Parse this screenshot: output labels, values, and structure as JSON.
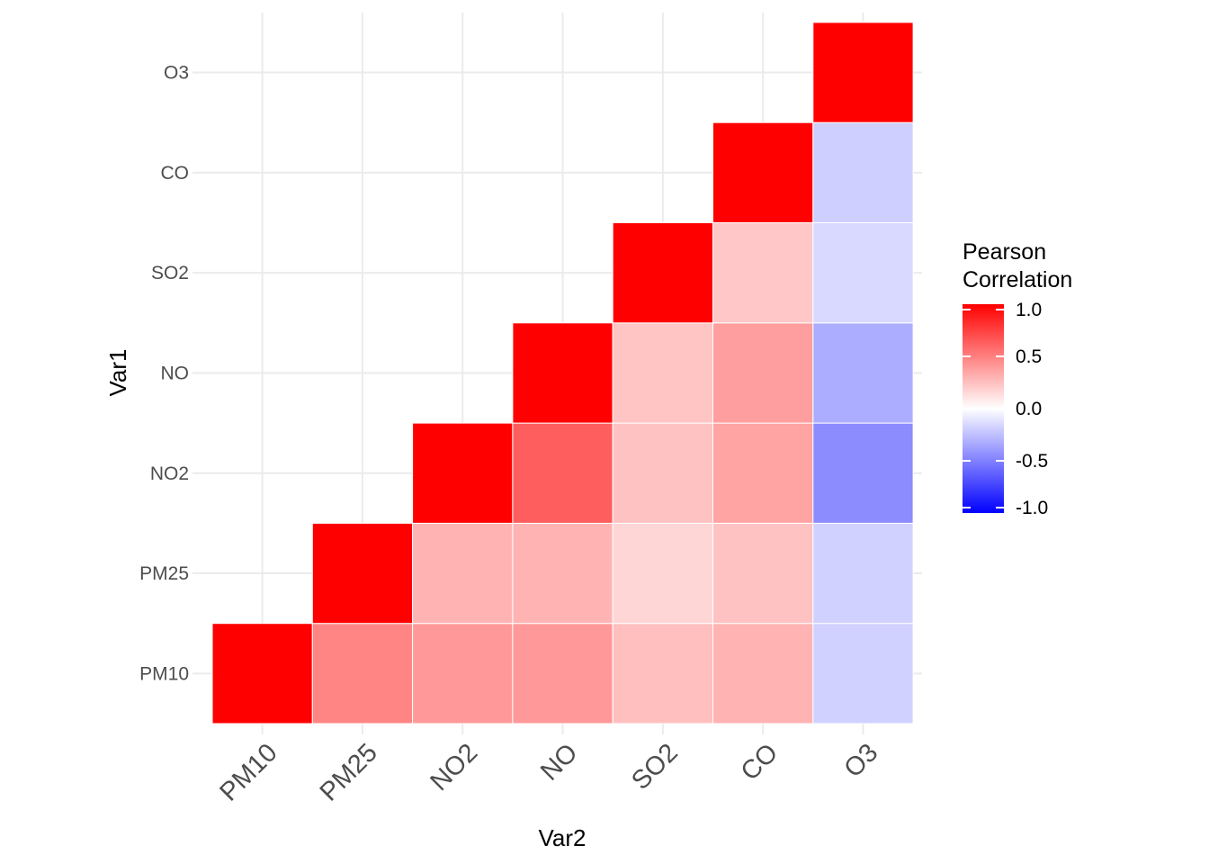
{
  "chart_data": {
    "type": "heatmap",
    "title": "",
    "xlabel": "Var2",
    "ylabel": "Var1",
    "x_categories": [
      "PM10",
      "PM25",
      "NO2",
      "NO",
      "SO2",
      "CO",
      "O3"
    ],
    "y_categories": [
      "PM10",
      "PM25",
      "NO2",
      "NO",
      "SO2",
      "CO",
      "O3"
    ],
    "cells": [
      {
        "x": "PM10",
        "y": "PM10",
        "value": 1.0
      },
      {
        "x": "PM25",
        "y": "PM10",
        "value": 0.48
      },
      {
        "x": "NO2",
        "y": "PM10",
        "value": 0.4
      },
      {
        "x": "NO",
        "y": "PM10",
        "value": 0.4
      },
      {
        "x": "SO2",
        "y": "PM10",
        "value": 0.25
      },
      {
        "x": "CO",
        "y": "PM10",
        "value": 0.3
      },
      {
        "x": "O3",
        "y": "PM10",
        "value": -0.18
      },
      {
        "x": "PM25",
        "y": "PM25",
        "value": 1.0
      },
      {
        "x": "NO2",
        "y": "PM25",
        "value": 0.3
      },
      {
        "x": "NO",
        "y": "PM25",
        "value": 0.3
      },
      {
        "x": "SO2",
        "y": "PM25",
        "value": 0.16
      },
      {
        "x": "CO",
        "y": "PM25",
        "value": 0.24
      },
      {
        "x": "O3",
        "y": "PM25",
        "value": -0.18
      },
      {
        "x": "NO2",
        "y": "NO2",
        "value": 1.0
      },
      {
        "x": "NO",
        "y": "NO2",
        "value": 0.63
      },
      {
        "x": "SO2",
        "y": "NO2",
        "value": 0.24
      },
      {
        "x": "CO",
        "y": "NO2",
        "value": 0.36
      },
      {
        "x": "O3",
        "y": "NO2",
        "value": -0.45
      },
      {
        "x": "NO",
        "y": "NO",
        "value": 1.0
      },
      {
        "x": "SO2",
        "y": "NO",
        "value": 0.23
      },
      {
        "x": "CO",
        "y": "NO",
        "value": 0.38
      },
      {
        "x": "O3",
        "y": "NO",
        "value": -0.32
      },
      {
        "x": "SO2",
        "y": "SO2",
        "value": 1.0
      },
      {
        "x": "CO",
        "y": "SO2",
        "value": 0.22
      },
      {
        "x": "O3",
        "y": "SO2",
        "value": -0.15
      },
      {
        "x": "CO",
        "y": "CO",
        "value": 1.0
      },
      {
        "x": "O3",
        "y": "CO",
        "value": -0.19
      },
      {
        "x": "O3",
        "y": "O3",
        "value": 1.0
      }
    ],
    "color_scale": {
      "low": "#0000FF",
      "mid": "#FFFFFF",
      "high": "#FF0000",
      "limits": [
        -1,
        1
      ]
    },
    "legend": {
      "title_lines": [
        "Pearson",
        "Correlation"
      ],
      "breaks": [
        1.0,
        0.5,
        0.0,
        -0.5,
        -1.0
      ],
      "break_labels": [
        "1.0",
        "0.5",
        "0.0",
        "-0.5",
        "-1.0"
      ],
      "position": "right"
    },
    "grid": true
  }
}
